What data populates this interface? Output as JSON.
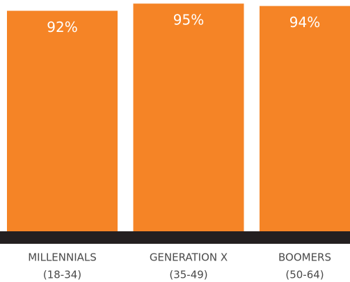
{
  "chart_data": {
    "type": "bar",
    "categories": [
      [
        "MILLENNIALS",
        "(18-34)"
      ],
      [
        "GENERATION X",
        "(35-49)"
      ],
      [
        "BOOMERS",
        "(50-64)"
      ]
    ],
    "values": [
      92,
      95,
      94
    ],
    "value_labels": [
      "92%",
      "95%",
      "94%"
    ],
    "color": "#f58426",
    "baseline_color": "#231f20",
    "ylim": [
      0,
      96.5
    ]
  }
}
